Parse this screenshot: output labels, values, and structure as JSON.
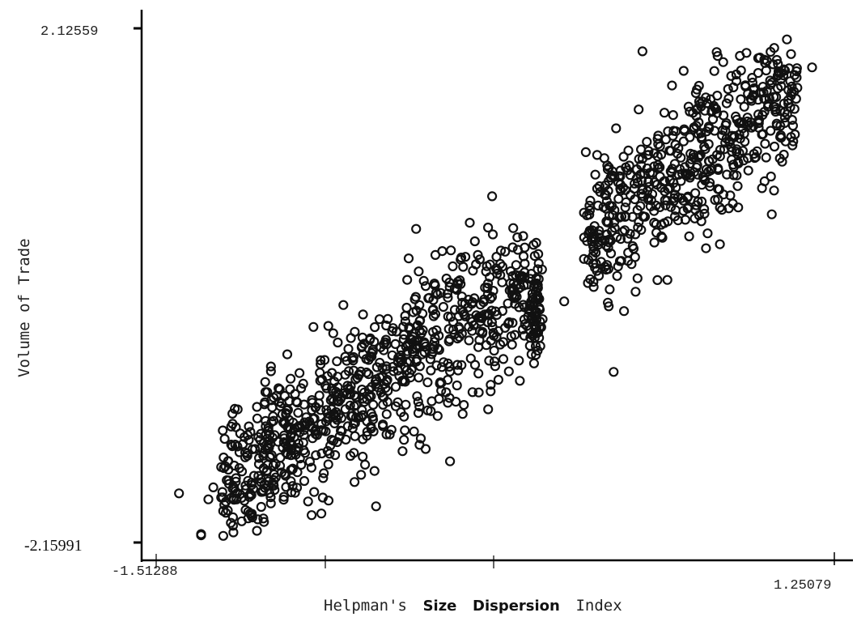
{
  "chart_data": {
    "type": "scatter",
    "title": "",
    "xlabel_parts": [
      "Helpman's",
      "Size",
      "Dispersion",
      "Index"
    ],
    "ylabel": "Volume of Trade",
    "xlim": [
      -1.51288,
      1.25079
    ],
    "ylim": [
      -2.15991,
      2.12559
    ],
    "x_tick_labels": [
      "-1.51288",
      "1.25079"
    ],
    "y_tick_labels": [
      "2.12559",
      "-2.15991"
    ],
    "grid": false,
    "legend": "none",
    "point_marker": "open-circle",
    "point_count_approx": 1400,
    "trend": {
      "slope": 1.42,
      "intercept": 0.05,
      "noise_sd": 0.32
    },
    "gap": {
      "x_from": -0.03,
      "x_to": 0.25,
      "dense_cluster_x": 0.03
    },
    "sample_points": [
      [
        -1.42,
        -1.75
      ],
      [
        -1.33,
        -2.09
      ],
      [
        -1.33,
        -2.1
      ],
      [
        -1.3,
        -1.8
      ],
      [
        -1.28,
        -1.7
      ],
      [
        -1.2,
        -1.95
      ],
      [
        -1.2,
        -2.02
      ],
      [
        -1.05,
        -1.45
      ],
      [
        -0.91,
        -1.01
      ],
      [
        -0.85,
        -1.0
      ],
      [
        -0.77,
        -0.92
      ],
      [
        -0.63,
        -0.57
      ],
      [
        -0.48,
        -0.5
      ],
      [
        -0.39,
        -0.59
      ],
      [
        -0.32,
        -0.38
      ],
      [
        -0.16,
        -1.05
      ],
      [
        -0.15,
        -0.9
      ],
      [
        -0.01,
        -0.34
      ],
      [
        0.0,
        -0.01
      ],
      [
        0.01,
        -0.52
      ],
      [
        0.02,
        -0.3
      ],
      [
        0.15,
        -0.15
      ],
      [
        0.27,
        -0.03
      ],
      [
        0.33,
        0.12
      ],
      [
        0.55,
        0.38
      ],
      [
        0.72,
        0.62
      ],
      [
        0.86,
        1.0
      ],
      [
        1.03,
        1.22
      ],
      [
        1.1,
        1.63
      ],
      [
        1.16,
        1.8
      ]
    ]
  }
}
